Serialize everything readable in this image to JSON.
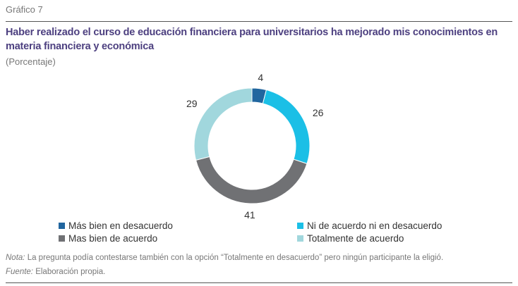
{
  "figure": {
    "label": "Gráfico 7",
    "title": "Haber realizado el curso de educación financiera para universitarios ha mejorado mis conocimientos en materia financiera y económica",
    "subtitle": "(Porcentaje)"
  },
  "chart_data": {
    "type": "pie",
    "variant": "donut",
    "categories": [
      "Más bien en desacuerdo",
      "Ni de acuerdo ni en desacuerdo",
      "Mas bien de acuerdo",
      "Totalmente de acuerdo"
    ],
    "values": [
      4,
      26,
      41,
      29
    ],
    "colors": [
      "#21669f",
      "#1bbfe6",
      "#707174",
      "#a1d7dd"
    ],
    "unit": "%",
    "legend_position": "bottom"
  },
  "legend": [
    {
      "label": "Más bien en desacuerdo",
      "color": "#21669f"
    },
    {
      "label": "Ni de acuerdo ni en desacuerdo",
      "color": "#1bbfe6"
    },
    {
      "label": "Mas bien de acuerdo",
      "color": "#707174"
    },
    {
      "label": "Totalmente de acuerdo",
      "color": "#a1d7dd"
    }
  ],
  "footnotes": {
    "note_label": "Nota:",
    "note_text": " La pregunta podía contestarse también con la opción “Totalmente en desacuerdo” pero ningún participante la eligió.",
    "source_label": "Fuente:",
    "source_text": " Elaboración propia."
  }
}
